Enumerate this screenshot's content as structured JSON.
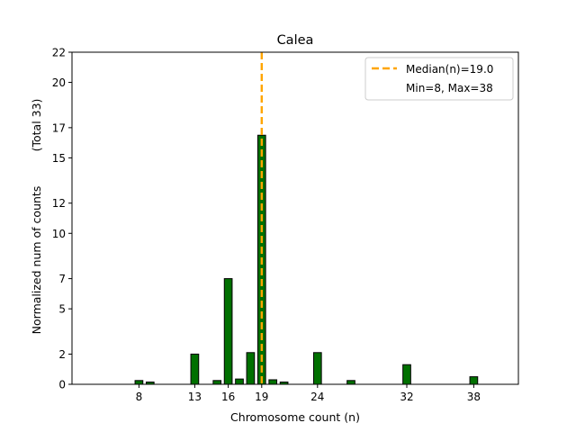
{
  "chart_data": {
    "type": "bar",
    "title": "Calea",
    "xlabel": "Chromosome count (n)",
    "ylabel": "Normalized num of counts",
    "ylabel_total": "(Total 33)",
    "xlim": [
      2,
      42
    ],
    "ylim": [
      0,
      22
    ],
    "x_ticks": [
      8,
      13,
      16,
      19,
      24,
      32,
      38
    ],
    "y_ticks": [
      0,
      2,
      5,
      7,
      10,
      12,
      15,
      17,
      20,
      22
    ],
    "grid": false,
    "bar_color": "#007000",
    "bar_edge_color": "#000000",
    "x": [
      8,
      9,
      13,
      15,
      16,
      17,
      18,
      19,
      20,
      21,
      24,
      27,
      32,
      38
    ],
    "values": [
      0.25,
      0.15,
      2.0,
      0.25,
      7.0,
      0.35,
      2.1,
      16.5,
      0.3,
      0.15,
      2.1,
      0.25,
      1.3,
      0.5
    ],
    "median": {
      "value": 19.0,
      "label": "Median(n)=19.0",
      "color": "#ffa500"
    },
    "legend": {
      "placement": "top-right",
      "entries": [
        "Median(n)=19.0",
        "Min=8, Max=38"
      ]
    }
  }
}
